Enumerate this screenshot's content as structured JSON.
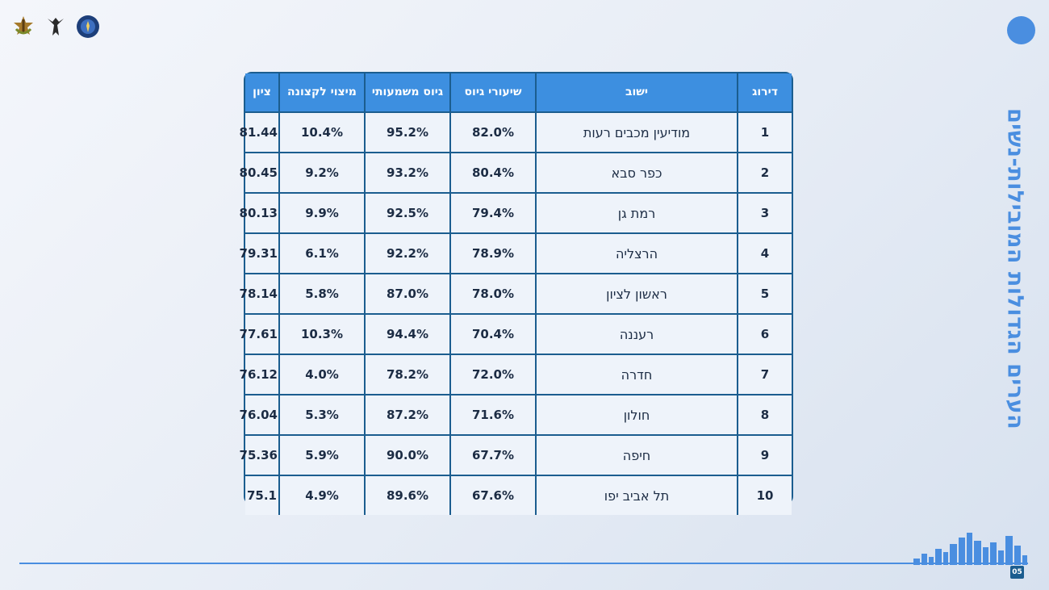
{
  "title": "הערים הגדולות המובילות-נשים",
  "page_number": "05",
  "colors": {
    "accent": "#4a8ee0",
    "header_bg": "#3d8fe0",
    "border": "#1b5d8f",
    "cell_bg": "#eef3fa"
  },
  "logos": [
    "idf-emblem-icon",
    "unit-emblem-icon",
    "round-emblem-icon"
  ],
  "table": {
    "headers": [
      "דירוג",
      "ישוב",
      "שיעורי גיוס",
      "גיוס משמעותי",
      "מיצוי לקצונה",
      "ציון"
    ],
    "rows": [
      [
        "1",
        "מודיעין מכבים רעות",
        "82.0%",
        "95.2%",
        "10.4%",
        "81.44"
      ],
      [
        "2",
        "כפר סבא",
        "80.4%",
        "93.2%",
        "9.2%",
        "80.45"
      ],
      [
        "3",
        "רמת גן",
        "79.4%",
        "92.5%",
        "9.9%",
        "80.13"
      ],
      [
        "4",
        "הרצליה",
        "78.9%",
        "92.2%",
        "6.1%",
        "79.31"
      ],
      [
        "5",
        "ראשון לציון",
        "78.0%",
        "87.0%",
        "5.8%",
        "78.14"
      ],
      [
        "6",
        "רעננה",
        "70.4%",
        "94.4%",
        "10.3%",
        "77.61"
      ],
      [
        "7",
        "חדרה",
        "72.0%",
        "78.2%",
        "4.0%",
        "76.12"
      ],
      [
        "8",
        "חולון",
        "71.6%",
        "87.2%",
        "5.3%",
        "76.04"
      ],
      [
        "9",
        "חיפה",
        "67.7%",
        "90.0%",
        "5.9%",
        "75.36"
      ],
      [
        "10",
        "תל אביב יפו",
        "67.6%",
        "89.6%",
        "4.9%",
        "75.1"
      ]
    ]
  }
}
